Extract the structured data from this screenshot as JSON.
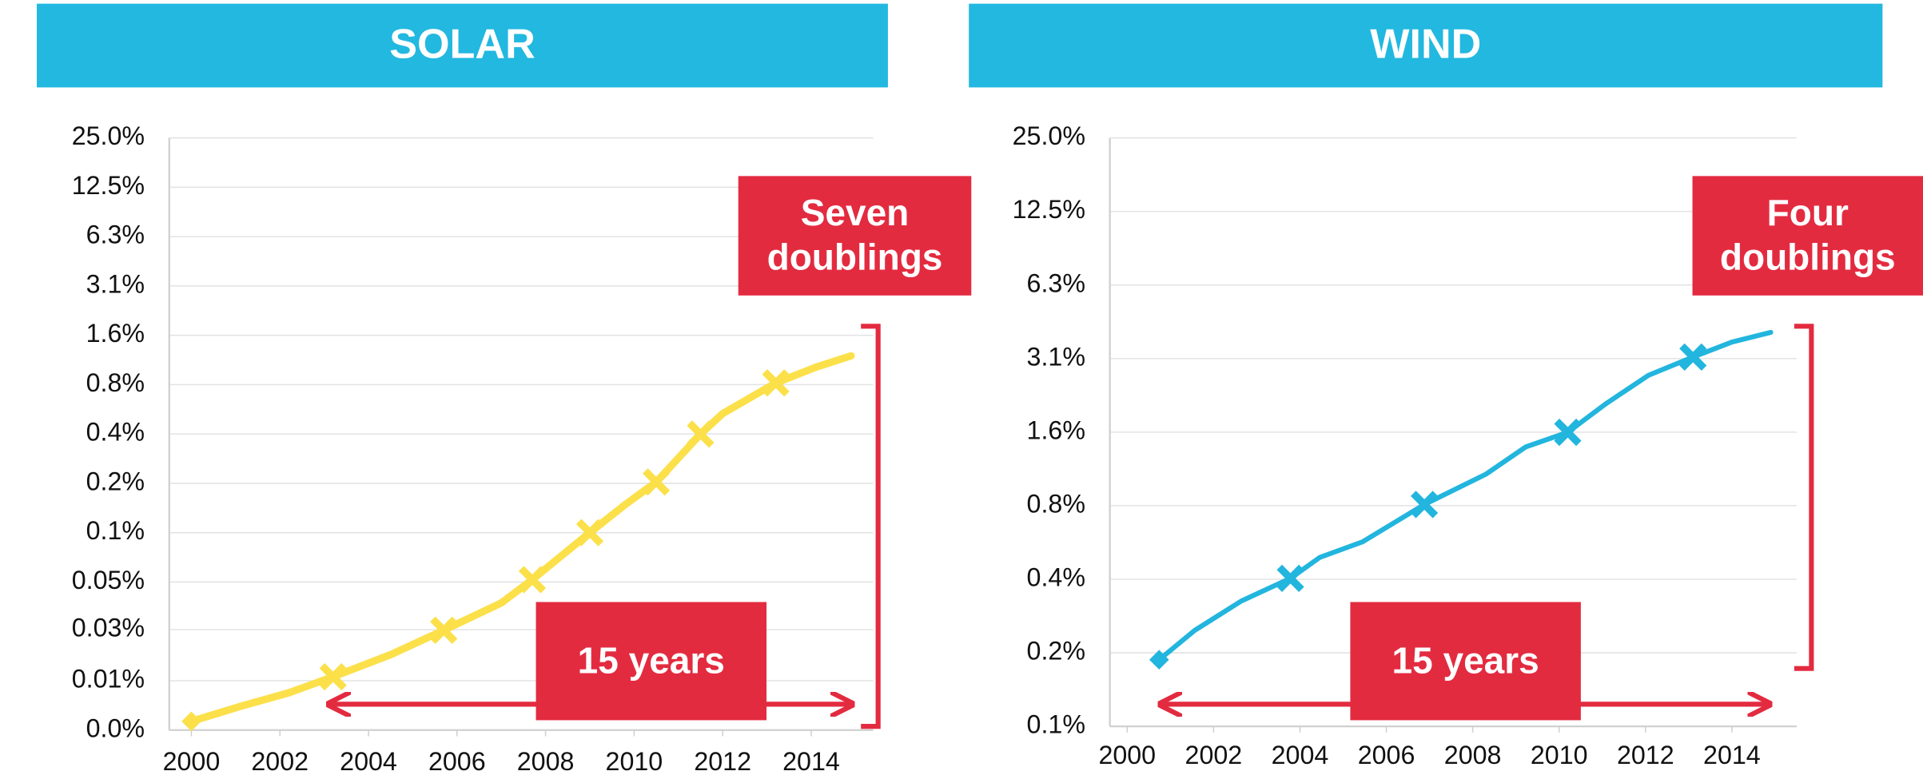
{
  "chart_data": [
    {
      "type": "line",
      "title": "SOLAR",
      "log_scale": true,
      "grid": true,
      "doublings_label": [
        "Seven",
        "doublings"
      ],
      "period_label": "15 years",
      "xlim": [
        1999.5,
        2015.4
      ],
      "xticks": [
        2000,
        2002,
        2004,
        2006,
        2008,
        2010,
        2012,
        2014
      ],
      "ylim": [
        0.006103515625,
        25
      ],
      "yticks": [
        {
          "value": 0.006103515625,
          "label": "0.0%"
        },
        {
          "value": 0.01220703125,
          "label": "0.01%"
        },
        {
          "value": 0.025,
          "label": "0.03%"
        },
        {
          "value": 0.048828125,
          "label": "0.05%"
        },
        {
          "value": 0.09765625,
          "label": "0.1%"
        },
        {
          "value": 0.1953125,
          "label": "0.2%"
        },
        {
          "value": 0.390625,
          "label": "0.4%"
        },
        {
          "value": 0.78125,
          "label": "0.8%"
        },
        {
          "value": 1.5625,
          "label": "1.6%"
        },
        {
          "value": 3.125,
          "label": "3.1%"
        },
        {
          "value": 6.25,
          "label": "6.3%"
        },
        {
          "value": 12.5,
          "label": "12.5%"
        },
        {
          "value": 25,
          "label": "25.0%"
        }
      ],
      "series": [
        {
          "color": "#fbe04a",
          "x": [
            2000.0,
            2001.1,
            2002.2,
            2003.2,
            2004.5,
            2005.7,
            2007.0,
            2007.7,
            2009.0,
            2009.8,
            2010.5,
            2011.5,
            2012.0,
            2013.2,
            2014.1,
            2014.9
          ],
          "values": [
            0.0069,
            0.0085,
            0.0103,
            0.0129,
            0.0176,
            0.0248,
            0.0364,
            0.0505,
            0.0977,
            0.145,
            0.199,
            0.39,
            0.52,
            0.8,
            0.997,
            1.17
          ]
        }
      ],
      "markers": {
        "x": [
          2000.0,
          2003.2,
          2005.7,
          2007.7,
          2009.0,
          2010.5,
          2011.5,
          2013.2
        ],
        "values": [
          0.0069,
          0.0129,
          0.0248,
          0.0505,
          0.0977,
          0.199,
          0.39,
          0.8
        ]
      }
    },
    {
      "type": "line",
      "title": "WIND",
      "log_scale": true,
      "grid": true,
      "doublings_label": [
        "Four",
        "doublings"
      ],
      "period_label": "15 years",
      "xlim": [
        1999.6,
        2015.5
      ],
      "xticks": [
        2000,
        2002,
        2004,
        2006,
        2008,
        2010,
        2012,
        2014
      ],
      "ylim": [
        0.09765625,
        25
      ],
      "yticks": [
        {
          "value": 0.09765625,
          "label": "0.1%"
        },
        {
          "value": 0.1953125,
          "label": "0.2%"
        },
        {
          "value": 0.390625,
          "label": "0.4%"
        },
        {
          "value": 0.78125,
          "label": "0.8%"
        },
        {
          "value": 1.5625,
          "label": "1.6%"
        },
        {
          "value": 3.125,
          "label": "3.1%"
        },
        {
          "value": 6.25,
          "label": "6.3%"
        },
        {
          "value": 12.5,
          "label": "12.5%"
        },
        {
          "value": 25,
          "label": "25.0%"
        }
      ],
      "series": [
        {
          "color": "#22b5de",
          "x": [
            2000.74,
            2001.56,
            2002.64,
            2003.78,
            2004.46,
            2005.45,
            2006.88,
            2008.3,
            2009.23,
            2010.2,
            2011.08,
            2012.07,
            2013.1,
            2014.0,
            2014.9
          ],
          "values": [
            0.183,
            0.241,
            0.318,
            0.394,
            0.48,
            0.556,
            0.79,
            1.05,
            1.36,
            1.56,
            2.04,
            2.67,
            3.17,
            3.65,
            4.0
          ]
        }
      ],
      "markers": {
        "x": [
          2000.74,
          2003.78,
          2006.88,
          2010.2,
          2013.1
        ],
        "values": [
          0.183,
          0.394,
          0.79,
          1.56,
          3.17
        ]
      }
    }
  ]
}
